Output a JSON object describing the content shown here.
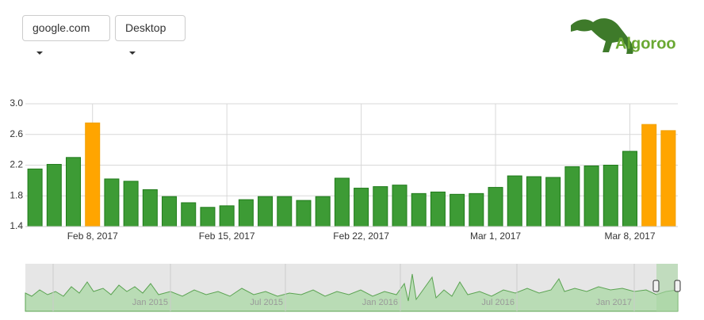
{
  "controls": {
    "site": "google.com",
    "device": "Desktop"
  },
  "logo": "Algoroo",
  "chart_data": {
    "type": "bar",
    "categories": [
      null,
      null,
      null,
      "Feb 8, 2017",
      null,
      null,
      null,
      null,
      null,
      null,
      "Feb 15, 2017",
      null,
      null,
      null,
      null,
      null,
      null,
      "Feb 22, 2017",
      null,
      null,
      null,
      null,
      null,
      null,
      "Mar 1, 2017",
      null,
      null,
      null,
      null,
      null,
      null,
      "Mar 8, 2017",
      null,
      null
    ],
    "values": [
      2.15,
      2.21,
      2.3,
      2.75,
      2.02,
      1.99,
      1.88,
      1.79,
      1.71,
      1.65,
      1.67,
      1.75,
      1.79,
      1.79,
      1.74,
      1.79,
      2.03,
      1.9,
      1.92,
      1.94,
      1.83,
      1.85,
      1.82,
      1.83,
      1.91,
      2.06,
      2.05,
      2.04,
      2.18,
      2.19,
      2.2,
      2.38,
      2.73,
      2.65
    ],
    "colors": [
      "#3d9b35",
      "#3d9b35",
      "#3d9b35",
      "#ffa500",
      "#3d9b35",
      "#3d9b35",
      "#3d9b35",
      "#3d9b35",
      "#3d9b35",
      "#3d9b35",
      "#3d9b35",
      "#3d9b35",
      "#3d9b35",
      "#3d9b35",
      "#3d9b35",
      "#3d9b35",
      "#3d9b35",
      "#3d9b35",
      "#3d9b35",
      "#3d9b35",
      "#3d9b35",
      "#3d9b35",
      "#3d9b35",
      "#3d9b35",
      "#3d9b35",
      "#3d9b35",
      "#3d9b35",
      "#3d9b35",
      "#3d9b35",
      "#3d9b35",
      "#3d9b35",
      "#3d9b35",
      "#ffa500",
      "#ffa500"
    ],
    "ylim": [
      1.4,
      3.0
    ],
    "yticks": [
      1.4,
      1.8,
      2.2,
      2.6,
      {
        "value": 3.0,
        "label": "3.0"
      }
    ],
    "grid": true
  },
  "navigator": {
    "labels": [
      "Jan 2015",
      "Jul 2015",
      "Jan 2016",
      "Jul 2016",
      "Jan 2017"
    ]
  }
}
